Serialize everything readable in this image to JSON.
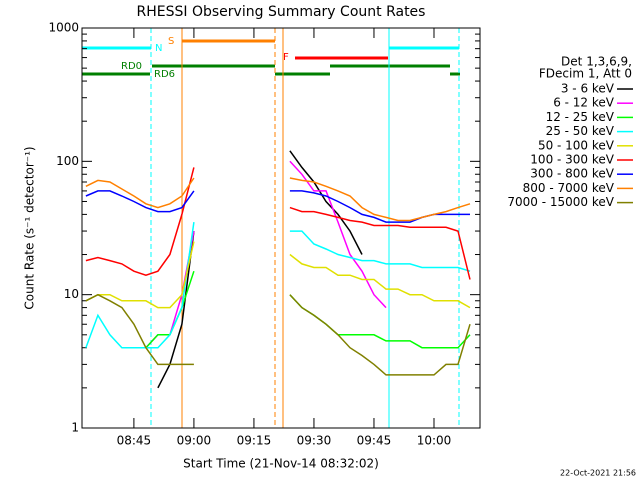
{
  "chart_data": {
    "type": "line",
    "title": "RHESSI Observing Summary Count Rates",
    "xlabel": "Start Time (21-Nov-14 08:32:02)",
    "ylabel": "Count Rate (s⁻¹ detector⁻¹)",
    "legend_header": [
      "Det 1,3,6,9,",
      "FDecim 1, Att 0"
    ],
    "flag_labels": [
      "N",
      "S",
      "RD0",
      "RD6",
      "F"
    ],
    "footer": "22-Oct-2021 21:56",
    "log_y": true,
    "ylim": [
      1,
      1000
    ],
    "yticks": [
      1,
      10,
      100,
      1000
    ],
    "xlim": [
      512.03,
      611.5
    ],
    "xticks": [
      {
        "value": 525,
        "label": "08:45"
      },
      {
        "value": 540,
        "label": "09:00"
      },
      {
        "value": 555,
        "label": "09:15"
      },
      {
        "value": 570,
        "label": "09:30"
      },
      {
        "value": 585,
        "label": "09:45"
      },
      {
        "value": 600,
        "label": "10:00"
      }
    ],
    "x": [
      513,
      516,
      519,
      522,
      525,
      528,
      531,
      534,
      537,
      540,
      543,
      546,
      549,
      552,
      555,
      558,
      561,
      564,
      567,
      570,
      573,
      576,
      579,
      582,
      585,
      588,
      591,
      594,
      597,
      600,
      603,
      606,
      609
    ],
    "series": [
      {
        "name": "3 - 6 keV",
        "color": "#000000",
        "values": [
          null,
          null,
          null,
          null,
          null,
          null,
          2,
          3,
          6,
          30,
          null,
          null,
          null,
          null,
          null,
          null,
          null,
          120,
          90,
          70,
          50,
          40,
          30,
          20,
          null,
          null,
          null,
          null,
          null,
          null,
          null,
          null,
          null
        ]
      },
      {
        "name": "6 - 12 keV",
        "color": "#ff00ff",
        "values": [
          null,
          null,
          null,
          null,
          null,
          4,
          5,
          5,
          10,
          30,
          null,
          null,
          null,
          null,
          null,
          null,
          null,
          100,
          80,
          60,
          60,
          35,
          20,
          15,
          10,
          8,
          null,
          null,
          null,
          null,
          null,
          null,
          null
        ]
      },
      {
        "name": "12 - 25 keV",
        "color": "#00ff00",
        "values": [
          null,
          null,
          null,
          null,
          null,
          4,
          5,
          5,
          8,
          15,
          null,
          null,
          null,
          null,
          null,
          null,
          null,
          10,
          8,
          7,
          6,
          5,
          5,
          5,
          5,
          4.5,
          4.5,
          4.5,
          4,
          4,
          4,
          4,
          5
        ]
      },
      {
        "name": "25 - 50 keV",
        "color": "#00ffff",
        "values": [
          4,
          7,
          5,
          4,
          4,
          4,
          4,
          5,
          8,
          35,
          null,
          null,
          null,
          null,
          null,
          null,
          null,
          30,
          30,
          24,
          22,
          20,
          19,
          18,
          18,
          17,
          17,
          17,
          16,
          16,
          16,
          16,
          15
        ]
      },
      {
        "name": "50 - 100 keV",
        "color": "#e0e000",
        "values": [
          9,
          10,
          10,
          9,
          9,
          9,
          8,
          8,
          10,
          25,
          null,
          null,
          null,
          null,
          null,
          null,
          null,
          20,
          17,
          16,
          16,
          14,
          14,
          13,
          13,
          11,
          11,
          10,
          10,
          9,
          9,
          9,
          8
        ]
      },
      {
        "name": "100 - 300 keV",
        "color": "#ff0000",
        "values": [
          18,
          19,
          18,
          17,
          15,
          14,
          15,
          20,
          40,
          90,
          null,
          null,
          null,
          null,
          null,
          null,
          null,
          45,
          42,
          42,
          40,
          38,
          36,
          35,
          33,
          33,
          33,
          32,
          32,
          32,
          32,
          30,
          13
        ]
      },
      {
        "name": "300 - 800 keV",
        "color": "#0000ff",
        "values": [
          55,
          60,
          60,
          55,
          50,
          45,
          42,
          42,
          45,
          60,
          null,
          null,
          null,
          null,
          null,
          null,
          null,
          60,
          60,
          58,
          55,
          50,
          45,
          40,
          38,
          35,
          35,
          35,
          38,
          40,
          40,
          40,
          40
        ]
      },
      {
        "name": "800 - 7000 keV",
        "color": "#ff8000",
        "values": [
          65,
          72,
          70,
          62,
          55,
          48,
          45,
          48,
          55,
          75,
          null,
          null,
          null,
          null,
          null,
          null,
          null,
          75,
          72,
          70,
          65,
          60,
          55,
          45,
          40,
          38,
          36,
          36,
          38,
          40,
          42,
          45,
          48
        ]
      },
      {
        "name": "7000 - 15000 keV",
        "color": "#808000",
        "values": [
          9,
          10,
          9,
          8,
          6,
          4,
          3,
          3,
          3,
          3,
          null,
          null,
          null,
          null,
          null,
          null,
          null,
          10,
          8,
          7,
          6,
          5,
          4,
          3.5,
          3,
          2.5,
          2.5,
          2.5,
          2.5,
          2.5,
          3,
          3,
          6
        ]
      }
    ]
  }
}
